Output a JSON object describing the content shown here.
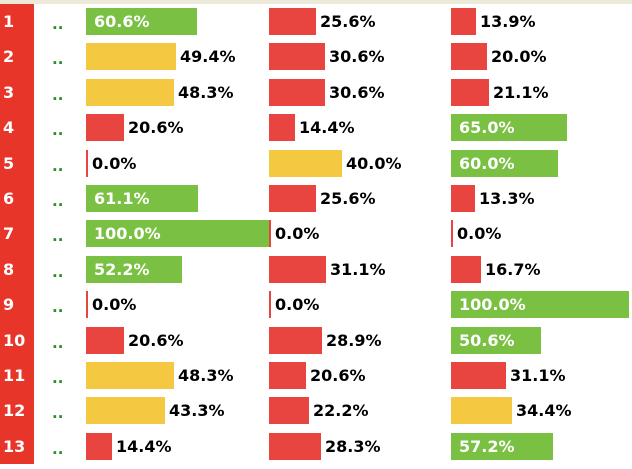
{
  "colors": {
    "green": "#7ac143",
    "yellow": "#f5c842",
    "red": "#e84540",
    "rownum_bg": "#e8352a",
    "dots": "#2e8b2e"
  },
  "row_dots": "..",
  "rows": [
    {
      "num": "1",
      "cells": [
        {
          "pct": 60.6,
          "label": "60.6%",
          "color": "green"
        },
        {
          "pct": 25.6,
          "label": "25.6%",
          "color": "red"
        },
        {
          "pct": 13.9,
          "label": "13.9%",
          "color": "red"
        }
      ]
    },
    {
      "num": "2",
      "cells": [
        {
          "pct": 49.4,
          "label": "49.4%",
          "color": "yellow"
        },
        {
          "pct": 30.6,
          "label": "30.6%",
          "color": "red"
        },
        {
          "pct": 20.0,
          "label": "20.0%",
          "color": "red"
        }
      ]
    },
    {
      "num": "3",
      "cells": [
        {
          "pct": 48.3,
          "label": "48.3%",
          "color": "yellow"
        },
        {
          "pct": 30.6,
          "label": "30.6%",
          "color": "red"
        },
        {
          "pct": 21.1,
          "label": "21.1%",
          "color": "red"
        }
      ]
    },
    {
      "num": "4",
      "cells": [
        {
          "pct": 20.6,
          "label": "20.6%",
          "color": "red"
        },
        {
          "pct": 14.4,
          "label": "14.4%",
          "color": "red"
        },
        {
          "pct": 65.0,
          "label": "65.0%",
          "color": "green"
        }
      ]
    },
    {
      "num": "5",
      "cells": [
        {
          "pct": 0.0,
          "label": "0.0%",
          "color": "red"
        },
        {
          "pct": 40.0,
          "label": "40.0%",
          "color": "yellow"
        },
        {
          "pct": 60.0,
          "label": "60.0%",
          "color": "green"
        }
      ]
    },
    {
      "num": "6",
      "cells": [
        {
          "pct": 61.1,
          "label": "61.1%",
          "color": "green"
        },
        {
          "pct": 25.6,
          "label": "25.6%",
          "color": "red"
        },
        {
          "pct": 13.3,
          "label": "13.3%",
          "color": "red"
        }
      ]
    },
    {
      "num": "7",
      "cells": [
        {
          "pct": 100.0,
          "label": "100.0%",
          "color": "green"
        },
        {
          "pct": 0.0,
          "label": "0.0%",
          "color": "red"
        },
        {
          "pct": 0.0,
          "label": "0.0%",
          "color": "red"
        }
      ]
    },
    {
      "num": "8",
      "cells": [
        {
          "pct": 52.2,
          "label": "52.2%",
          "color": "green"
        },
        {
          "pct": 31.1,
          "label": "31.1%",
          "color": "red"
        },
        {
          "pct": 16.7,
          "label": "16.7%",
          "color": "red"
        }
      ]
    },
    {
      "num": "9",
      "cells": [
        {
          "pct": 0.0,
          "label": "0.0%",
          "color": "red"
        },
        {
          "pct": 0.0,
          "label": "0.0%",
          "color": "red"
        },
        {
          "pct": 100.0,
          "label": "100.0%",
          "color": "green"
        }
      ]
    },
    {
      "num": "10",
      "cells": [
        {
          "pct": 20.6,
          "label": "20.6%",
          "color": "red"
        },
        {
          "pct": 28.9,
          "label": "28.9%",
          "color": "red"
        },
        {
          "pct": 50.6,
          "label": "50.6%",
          "color": "green"
        }
      ]
    },
    {
      "num": "11",
      "cells": [
        {
          "pct": 48.3,
          "label": "48.3%",
          "color": "yellow"
        },
        {
          "pct": 20.6,
          "label": "20.6%",
          "color": "red"
        },
        {
          "pct": 31.1,
          "label": "31.1%",
          "color": "red"
        }
      ]
    },
    {
      "num": "12",
      "cells": [
        {
          "pct": 43.3,
          "label": "43.3%",
          "color": "yellow"
        },
        {
          "pct": 22.2,
          "label": "22.2%",
          "color": "red"
        },
        {
          "pct": 34.4,
          "label": "34.4%",
          "color": "yellow"
        }
      ]
    },
    {
      "num": "13",
      "cells": [
        {
          "pct": 14.4,
          "label": "14.4%",
          "color": "red"
        },
        {
          "pct": 28.3,
          "label": "28.3%",
          "color": "red"
        },
        {
          "pct": 57.2,
          "label": "57.2%",
          "color": "green"
        }
      ]
    }
  ]
}
